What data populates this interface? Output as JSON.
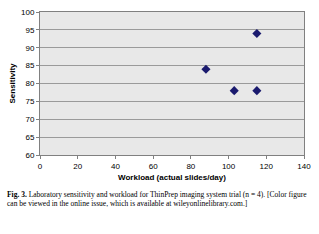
{
  "chart_data": {
    "type": "scatter",
    "x_label": "Workload (actual slides/day)",
    "y_label": "Sensitivity",
    "x": [
      88,
      103,
      115,
      115
    ],
    "values": [
      84,
      78,
      94,
      78
    ],
    "color": "#1a1a6e",
    "marker": "diamond",
    "xlim": [
      0,
      140
    ],
    "xticks": [
      0,
      20,
      40,
      60,
      80,
      100,
      120,
      140
    ],
    "ylim": [
      60,
      100
    ],
    "yticks": [
      60,
      65,
      70,
      75,
      80,
      85,
      90,
      95,
      100
    ],
    "grid": true,
    "caption_label": "Fig. 3.",
    "caption": "Laboratory sensitivity and workload for ThinPrep imaging system trial (n = 4). [Color figure can be viewed in the online issue, which is available at wileyonlinelibrary.com.]"
  }
}
